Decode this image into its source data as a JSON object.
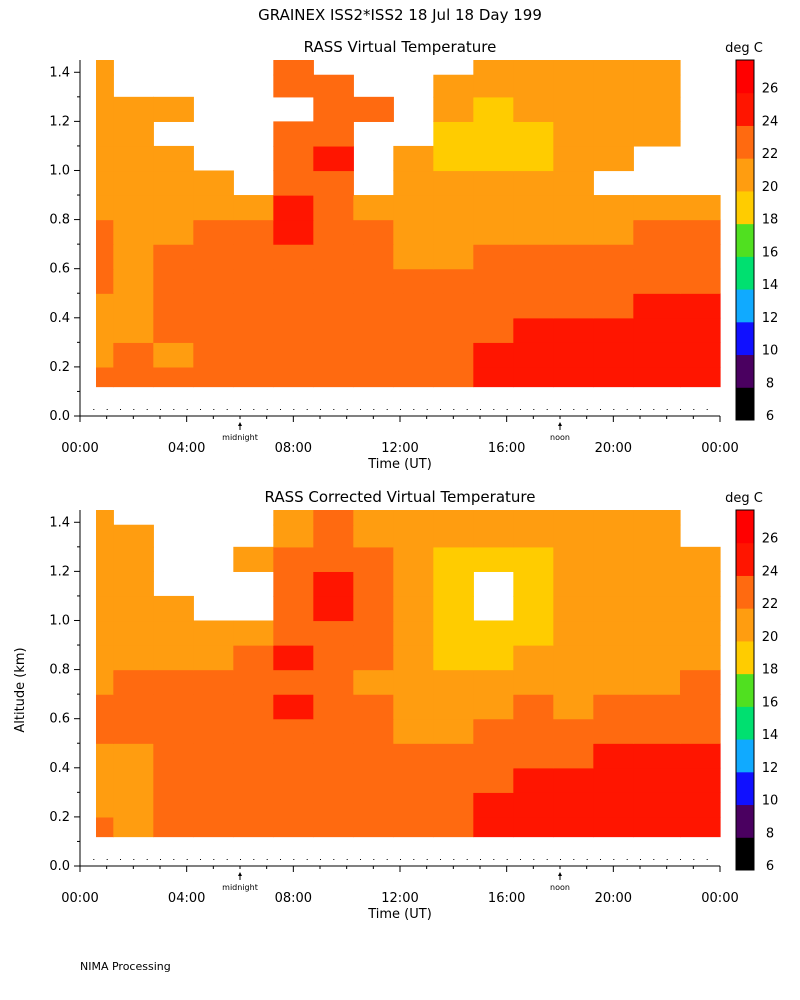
{
  "figure_title": "GRAINEX ISS2*ISS2  18 Jul 18 Day 199",
  "footer": "NIMA Processing",
  "colorbar": {
    "unit": "deg C",
    "bounds": [
      6,
      8,
      10,
      12,
      14,
      16,
      18,
      20,
      22,
      24,
      26,
      28
    ],
    "tick_labels": [
      "6",
      "8",
      "10",
      "12",
      "14",
      "16",
      "18",
      "20",
      "22",
      "24",
      "26"
    ],
    "colors": [
      "#000000",
      "#4a0060",
      "#1010ff",
      "#10aaff",
      "#00e070",
      "#50e020",
      "#ffcc00",
      "#ff9d10",
      "#ff6a10",
      "#ff1500",
      "#ff0000"
    ]
  },
  "chart_data": [
    {
      "type": "heatmap",
      "title": "RASS Virtual Temperature",
      "xlabel": "Time (UT)",
      "ylabel": "",
      "xlim": [
        0,
        24
      ],
      "ylim": [
        0,
        1.45
      ],
      "x_tick_labels": [
        "00:00",
        "04:00",
        "08:00",
        "12:00",
        "16:00",
        "20:00",
        "00:00"
      ],
      "y_tick_labels": [
        "0.0",
        "0.2",
        "0.4",
        "0.6",
        "0.8",
        "1.0",
        "1.2",
        "1.4"
      ],
      "markers": [
        {
          "label": "midnight",
          "x": 6
        },
        {
          "label": "noon",
          "x": 18
        }
      ],
      "unit": "deg C",
      "x": [
        0.5,
        2,
        3.5,
        5,
        6.5,
        8,
        9.5,
        11,
        12.5,
        14,
        15.5,
        17,
        18.5,
        20,
        21.5,
        23.5
      ],
      "y": [
        0.15,
        0.25,
        0.35,
        0.45,
        0.55,
        0.65,
        0.75,
        0.85,
        0.95,
        1.05,
        1.15,
        1.25,
        1.35,
        1.43
      ],
      "z": [
        [
          22,
          22,
          22,
          22,
          22,
          22,
          22,
          22,
          22,
          22,
          25,
          25,
          25,
          25,
          25,
          25
        ],
        [
          20,
          22,
          20,
          22,
          22,
          22,
          22,
          22,
          22,
          22,
          24,
          24,
          25,
          25,
          25,
          25
        ],
        [
          20,
          20,
          22,
          22,
          22,
          22,
          22,
          22,
          22,
          22,
          22,
          24,
          24,
          24,
          25,
          25
        ],
        [
          20,
          20,
          22,
          22,
          22,
          22,
          22,
          22,
          22,
          22,
          22,
          22,
          22,
          22,
          24,
          24
        ],
        [
          22,
          20,
          22,
          22,
          22,
          22,
          22,
          22,
          22,
          22,
          22,
          22,
          22,
          22,
          22,
          22
        ],
        [
          22,
          20,
          22,
          22,
          22,
          22,
          22,
          22,
          20,
          20,
          22,
          22,
          22,
          22,
          22,
          22
        ],
        [
          22,
          20,
          20,
          22,
          22,
          24,
          22,
          22,
          20,
          20,
          20,
          20,
          20,
          20,
          22,
          22
        ],
        [
          20,
          20,
          20,
          20,
          20,
          24,
          22,
          20,
          20,
          20,
          20,
          20,
          20,
          20,
          20,
          20
        ],
        [
          20,
          20,
          20,
          20,
          null,
          22,
          22,
          null,
          20,
          20,
          20,
          20,
          20,
          null,
          null,
          null
        ],
        [
          20,
          20,
          20,
          null,
          null,
          22,
          24,
          null,
          20,
          18,
          18,
          18,
          20,
          20,
          null,
          null
        ],
        [
          20,
          20,
          null,
          null,
          null,
          22,
          22,
          null,
          null,
          18,
          18,
          18,
          20,
          20,
          20,
          null
        ],
        [
          20,
          20,
          20,
          null,
          null,
          null,
          22,
          22,
          null,
          20,
          18,
          20,
          20,
          20,
          20,
          null
        ],
        [
          20,
          null,
          null,
          null,
          null,
          22,
          22,
          null,
          null,
          20,
          20,
          20,
          20,
          20,
          20,
          null
        ],
        [
          20,
          null,
          null,
          null,
          null,
          22,
          null,
          null,
          null,
          null,
          20,
          20,
          20,
          20,
          20,
          null
        ]
      ]
    },
    {
      "type": "heatmap",
      "title": "RASS Corrected Virtual Temperature",
      "xlabel": "Time (UT)",
      "ylabel": "Altitude (km)",
      "xlim": [
        0,
        24
      ],
      "ylim": [
        0,
        1.45
      ],
      "x_tick_labels": [
        "00:00",
        "04:00",
        "08:00",
        "12:00",
        "16:00",
        "20:00",
        "00:00"
      ],
      "y_tick_labels": [
        "0.0",
        "0.2",
        "0.4",
        "0.6",
        "0.8",
        "1.0",
        "1.2",
        "1.4"
      ],
      "markers": [
        {
          "label": "midnight",
          "x": 6
        },
        {
          "label": "noon",
          "x": 18
        }
      ],
      "unit": "deg C",
      "x": [
        0.5,
        2,
        3.5,
        5,
        6.5,
        8,
        9.5,
        11,
        12.5,
        14,
        15.5,
        17,
        18.5,
        20,
        21.5,
        23.5
      ],
      "y": [
        0.15,
        0.25,
        0.35,
        0.45,
        0.55,
        0.65,
        0.75,
        0.85,
        0.95,
        1.05,
        1.15,
        1.25,
        1.35,
        1.43
      ],
      "z": [
        [
          22,
          20,
          22,
          22,
          22,
          22,
          22,
          22,
          22,
          22,
          25,
          25,
          25,
          25,
          25,
          25
        ],
        [
          20,
          20,
          22,
          22,
          22,
          22,
          22,
          22,
          22,
          22,
          24,
          25,
          25,
          25,
          25,
          25
        ],
        [
          20,
          20,
          22,
          22,
          22,
          22,
          22,
          22,
          22,
          22,
          22,
          24,
          24,
          24,
          25,
          25
        ],
        [
          20,
          20,
          22,
          22,
          22,
          22,
          22,
          22,
          22,
          22,
          22,
          22,
          22,
          24,
          24,
          25
        ],
        [
          22,
          22,
          22,
          22,
          22,
          22,
          22,
          22,
          20,
          20,
          22,
          22,
          22,
          22,
          22,
          22
        ],
        [
          22,
          22,
          22,
          22,
          22,
          24,
          22,
          22,
          20,
          20,
          20,
          22,
          20,
          22,
          22,
          22
        ],
        [
          20,
          22,
          22,
          22,
          22,
          22,
          22,
          20,
          20,
          20,
          20,
          20,
          20,
          20,
          20,
          22
        ],
        [
          20,
          20,
          20,
          20,
          22,
          24,
          22,
          22,
          20,
          18,
          18,
          20,
          20,
          20,
          20,
          20
        ],
        [
          20,
          20,
          20,
          20,
          20,
          22,
          22,
          22,
          20,
          18,
          18,
          18,
          20,
          20,
          20,
          20
        ],
        [
          20,
          20,
          20,
          null,
          null,
          22,
          24,
          22,
          20,
          18,
          null,
          18,
          20,
          20,
          20,
          20
        ],
        [
          20,
          20,
          null,
          null,
          null,
          22,
          24,
          22,
          20,
          18,
          null,
          18,
          20,
          20,
          20,
          20
        ],
        [
          20,
          20,
          null,
          null,
          20,
          22,
          22,
          22,
          20,
          18,
          18,
          18,
          20,
          20,
          20,
          20
        ],
        [
          20,
          20,
          null,
          null,
          null,
          20,
          22,
          20,
          20,
          20,
          20,
          20,
          20,
          20,
          20,
          null
        ],
        [
          20,
          null,
          null,
          null,
          null,
          20,
          22,
          20,
          20,
          20,
          20,
          20,
          20,
          20,
          20,
          null
        ]
      ]
    }
  ]
}
